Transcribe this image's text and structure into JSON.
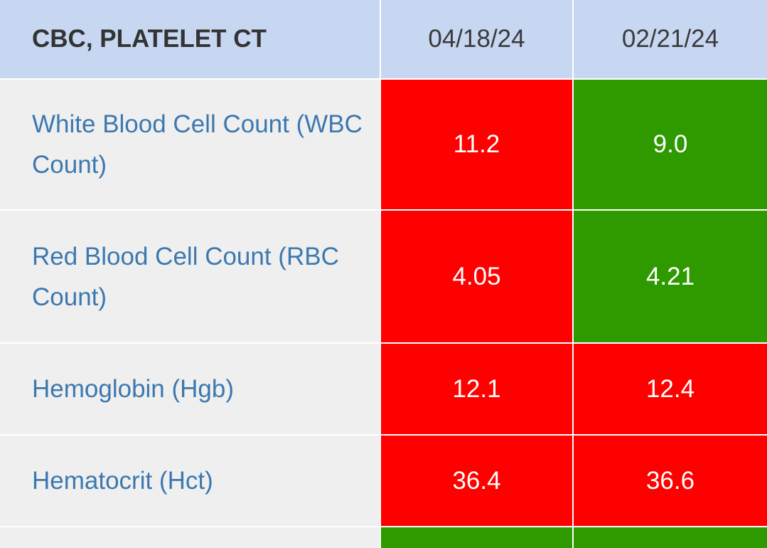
{
  "colors": {
    "header_bg": "#c7d7f2",
    "label_bg": "#efefef",
    "label_text": "#3c78b0",
    "high": "#ff0000",
    "normal": "#2e9a00"
  },
  "table": {
    "title": "CBC, PLATELET CT",
    "dates": [
      "04/18/24",
      "02/21/24"
    ],
    "rows": [
      {
        "label": "White Blood Cell Count (WBC Count)",
        "values": [
          "11.2",
          "9.0"
        ],
        "status": [
          "high",
          "normal"
        ]
      },
      {
        "label": "Red Blood Cell Count (RBC Count)",
        "values": [
          "4.05",
          "4.21"
        ],
        "status": [
          "high",
          "normal"
        ]
      },
      {
        "label": "Hemoglobin (Hgb)",
        "values": [
          "12.1",
          "12.4"
        ],
        "status": [
          "high",
          "high"
        ]
      },
      {
        "label": "Hematocrit (Hct)",
        "values": [
          "36.4",
          "36.6"
        ],
        "status": [
          "high",
          "high"
        ]
      },
      {
        "label": "",
        "values": [
          "",
          ""
        ],
        "status": [
          "normal",
          "normal"
        ]
      }
    ]
  }
}
